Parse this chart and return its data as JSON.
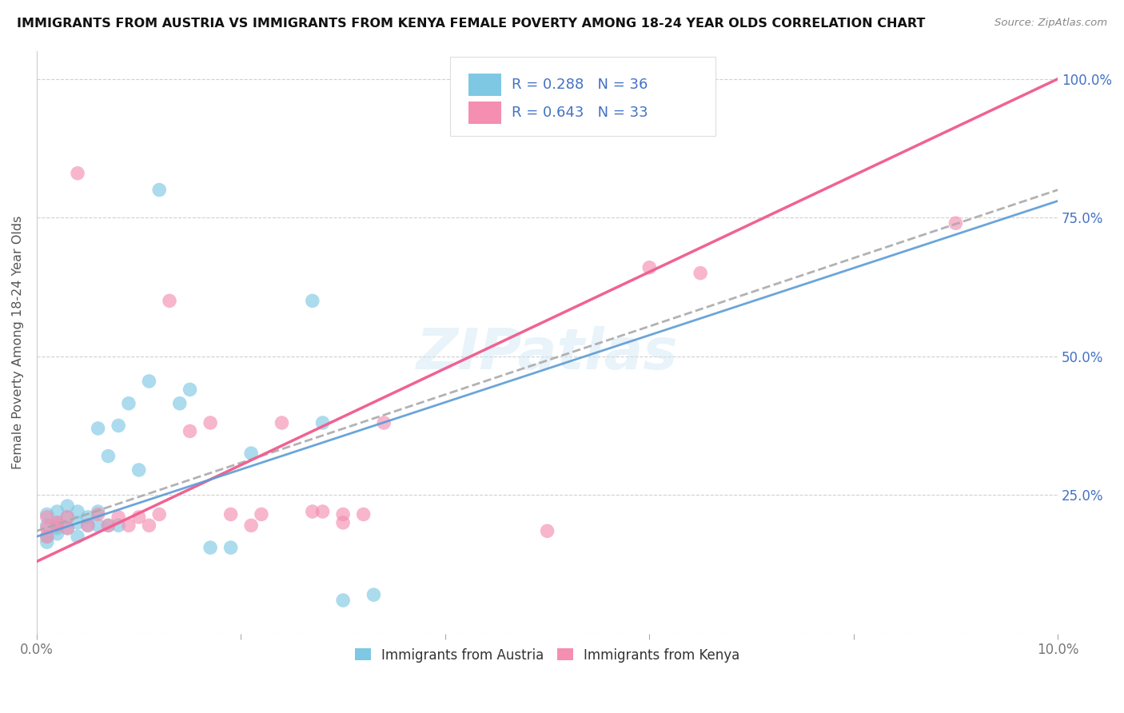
{
  "title": "IMMIGRANTS FROM AUSTRIA VS IMMIGRANTS FROM KENYA FEMALE POVERTY AMONG 18-24 YEAR OLDS CORRELATION CHART",
  "source": "Source: ZipAtlas.com",
  "ylabel": "Female Poverty Among 18-24 Year Olds",
  "xlim": [
    0.0,
    0.1
  ],
  "ylim": [
    0.0,
    1.05
  ],
  "x_tick_vals": [
    0.0,
    0.02,
    0.04,
    0.06,
    0.08,
    0.1
  ],
  "x_tick_labels": [
    "0.0%",
    "",
    "",
    "",
    "",
    "10.0%"
  ],
  "y_tick_vals": [
    0.0,
    0.25,
    0.5,
    0.75,
    1.0
  ],
  "y_tick_labels_right": [
    "",
    "25.0%",
    "50.0%",
    "75.0%",
    "100.0%"
  ],
  "austria_color": "#7ec8e3",
  "kenya_color": "#f48fb1",
  "austria_line_color": "#5b9bd5",
  "kenya_line_color": "#f06292",
  "dash_line_color": "#aaaaaa",
  "R_austria": 0.288,
  "N_austria": 36,
  "R_kenya": 0.643,
  "N_kenya": 33,
  "legend_text_color": "#4472c4",
  "watermark": "ZIPatlas",
  "austria_x": [
    0.001,
    0.001,
    0.001,
    0.001,
    0.002,
    0.002,
    0.002,
    0.002,
    0.003,
    0.003,
    0.003,
    0.004,
    0.004,
    0.004,
    0.005,
    0.005,
    0.006,
    0.006,
    0.006,
    0.007,
    0.007,
    0.008,
    0.008,
    0.009,
    0.01,
    0.011,
    0.012,
    0.014,
    0.015,
    0.017,
    0.019,
    0.021,
    0.027,
    0.028,
    0.03,
    0.033
  ],
  "austria_y": [
    0.175,
    0.195,
    0.215,
    0.165,
    0.18,
    0.2,
    0.22,
    0.19,
    0.21,
    0.23,
    0.19,
    0.2,
    0.22,
    0.175,
    0.195,
    0.21,
    0.22,
    0.195,
    0.37,
    0.195,
    0.32,
    0.195,
    0.375,
    0.415,
    0.295,
    0.455,
    0.8,
    0.415,
    0.44,
    0.155,
    0.155,
    0.325,
    0.6,
    0.38,
    0.06,
    0.07
  ],
  "kenya_x": [
    0.001,
    0.001,
    0.001,
    0.002,
    0.002,
    0.003,
    0.003,
    0.004,
    0.005,
    0.006,
    0.007,
    0.008,
    0.009,
    0.01,
    0.011,
    0.012,
    0.013,
    0.015,
    0.017,
    0.019,
    0.021,
    0.022,
    0.024,
    0.027,
    0.028,
    0.03,
    0.03,
    0.032,
    0.034,
    0.05,
    0.06,
    0.065,
    0.09
  ],
  "kenya_y": [
    0.21,
    0.19,
    0.175,
    0.2,
    0.195,
    0.21,
    0.19,
    0.83,
    0.195,
    0.215,
    0.195,
    0.21,
    0.195,
    0.21,
    0.195,
    0.215,
    0.6,
    0.365,
    0.38,
    0.215,
    0.195,
    0.215,
    0.38,
    0.22,
    0.22,
    0.215,
    0.2,
    0.215,
    0.38,
    0.185,
    0.66,
    0.65,
    0.74
  ],
  "austria_line_x": [
    0.0,
    0.1
  ],
  "austria_line_y": [
    0.185,
    0.8
  ],
  "kenya_line_x": [
    0.0,
    0.1
  ],
  "kenya_line_y": [
    0.13,
    1.0
  ]
}
